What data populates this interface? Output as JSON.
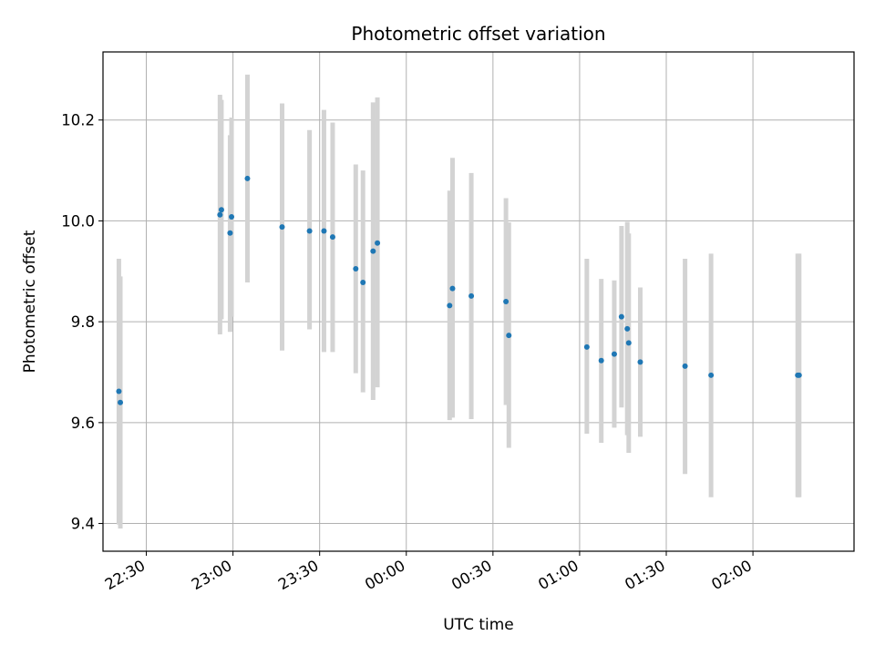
{
  "chart_data": {
    "type": "scatter",
    "title": "Photometric offset variation",
    "xlabel": "UTC time",
    "ylabel": "Photometric offset",
    "x_axis_type": "time",
    "xlim": [
      "22:15",
      "02:35"
    ],
    "ylim": [
      9.345,
      10.335
    ],
    "x_ticks": [
      "22:30",
      "23:00",
      "23:30",
      "00:00",
      "00:30",
      "01:00",
      "01:30",
      "02:00"
    ],
    "y_ticks": [
      "9.4",
      "9.6",
      "9.8",
      "10.0",
      "10.2"
    ],
    "y_tick_values": [
      9.4,
      9.6,
      9.8,
      10.0,
      10.2
    ],
    "grid": true,
    "legend": "none",
    "colors": {
      "marker": "#1f77b4",
      "errorbar": "#d3d3d3",
      "grid": "#b0b0b0"
    },
    "points": [
      {
        "x": "22:20.5",
        "y": 9.662,
        "ylow": 9.398,
        "yhigh": 9.925
      },
      {
        "x": "22:21.0",
        "y": 9.64,
        "ylow": 9.39,
        "yhigh": 9.89
      },
      {
        "x": "22:55.5",
        "y": 10.012,
        "ylow": 9.775,
        "yhigh": 10.25
      },
      {
        "x": "22:56.0",
        "y": 10.022,
        "ylow": 9.805,
        "yhigh": 10.24
      },
      {
        "x": "22:59.0",
        "y": 9.976,
        "ylow": 9.78,
        "yhigh": 10.17
      },
      {
        "x": "22:59.5",
        "y": 10.008,
        "ylow": 9.81,
        "yhigh": 10.205
      },
      {
        "x": "23:05.0",
        "y": 10.084,
        "ylow": 9.878,
        "yhigh": 10.29
      },
      {
        "x": "23:17.0",
        "y": 9.988,
        "ylow": 9.743,
        "yhigh": 10.233
      },
      {
        "x": "23:26.5",
        "y": 9.98,
        "ylow": 9.785,
        "yhigh": 10.18
      },
      {
        "x": "23:31.5",
        "y": 9.98,
        "ylow": 9.74,
        "yhigh": 10.22
      },
      {
        "x": "23:34.5",
        "y": 9.968,
        "ylow": 9.74,
        "yhigh": 10.195
      },
      {
        "x": "23:42.5",
        "y": 9.905,
        "ylow": 9.698,
        "yhigh": 10.112
      },
      {
        "x": "23:45.0",
        "y": 9.878,
        "ylow": 9.66,
        "yhigh": 10.1
      },
      {
        "x": "23:48.5",
        "y": 9.94,
        "ylow": 9.645,
        "yhigh": 10.235
      },
      {
        "x": "23:50.0",
        "y": 9.956,
        "ylow": 9.67,
        "yhigh": 10.245
      },
      {
        "x": "00:15.0",
        "y": 9.832,
        "ylow": 9.605,
        "yhigh": 10.06
      },
      {
        "x": "00:16.0",
        "y": 9.866,
        "ylow": 9.61,
        "yhigh": 10.125
      },
      {
        "x": "00:22.5",
        "y": 9.851,
        "ylow": 9.607,
        "yhigh": 10.095
      },
      {
        "x": "00:34.5",
        "y": 9.84,
        "ylow": 9.635,
        "yhigh": 10.045
      },
      {
        "x": "00:35.5",
        "y": 9.773,
        "ylow": 9.55,
        "yhigh": 9.997
      },
      {
        "x": "01:02.5",
        "y": 9.75,
        "ylow": 9.578,
        "yhigh": 9.925
      },
      {
        "x": "01:07.5",
        "y": 9.723,
        "ylow": 9.56,
        "yhigh": 9.885
      },
      {
        "x": "01:12.0",
        "y": 9.736,
        "ylow": 9.59,
        "yhigh": 9.882
      },
      {
        "x": "01:14.5",
        "y": 9.81,
        "ylow": 9.63,
        "yhigh": 9.99
      },
      {
        "x": "01:16.5",
        "y": 9.786,
        "ylow": 9.575,
        "yhigh": 9.998
      },
      {
        "x": "01:17.0",
        "y": 9.758,
        "ylow": 9.54,
        "yhigh": 9.975
      },
      {
        "x": "01:21.0",
        "y": 9.72,
        "ylow": 9.572,
        "yhigh": 9.868
      },
      {
        "x": "01:36.5",
        "y": 9.712,
        "ylow": 9.498,
        "yhigh": 9.925
      },
      {
        "x": "01:45.5",
        "y": 9.694,
        "ylow": 9.452,
        "yhigh": 9.935
      },
      {
        "x": "02:15.5",
        "y": 9.694,
        "ylow": 9.452,
        "yhigh": 9.935
      },
      {
        "x": "02:16.0",
        "y": 9.694,
        "ylow": 9.452,
        "yhigh": 9.935
      }
    ]
  }
}
